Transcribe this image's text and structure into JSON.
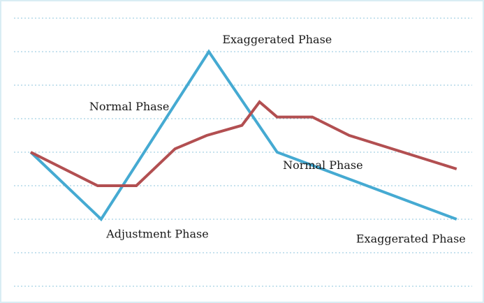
{
  "chart_data": {
    "type": "line",
    "title": "",
    "xlabel": "",
    "ylabel": "",
    "grid": true,
    "ylim": [
      0,
      9
    ],
    "series": [
      {
        "color": "#45aad2",
        "x": [
          0,
          2,
          5.06,
          7,
          12.1
        ],
        "y": [
          4,
          2,
          7,
          4,
          2
        ]
      },
      {
        "color": "#b24f51",
        "x": [
          0,
          1.9,
          3,
          4.1,
          5,
          6,
          6.5,
          7,
          8,
          9.05,
          12.1
        ],
        "y": [
          4,
          3,
          3,
          4.1,
          4.5,
          4.8,
          5.5,
          5.05,
          5.05,
          4.5,
          3.5
        ]
      }
    ],
    "annotations": [
      {
        "id": "exaggerated-top",
        "text": "Exaggerated Phase",
        "x": 7.0,
        "y": 7.25
      },
      {
        "id": "normal-left",
        "text": "Normal Phase",
        "x": 2.8,
        "y": 5.25
      },
      {
        "id": "normal-right",
        "text": "Normal Phase",
        "x": 8.3,
        "y": 3.5
      },
      {
        "id": "adjustment",
        "text": "Adjustment Phase",
        "x": 3.6,
        "y": 1.45
      },
      {
        "id": "exaggerated-right",
        "text": "Exaggerated Phase",
        "x": 10.8,
        "y": 1.3
      }
    ]
  }
}
